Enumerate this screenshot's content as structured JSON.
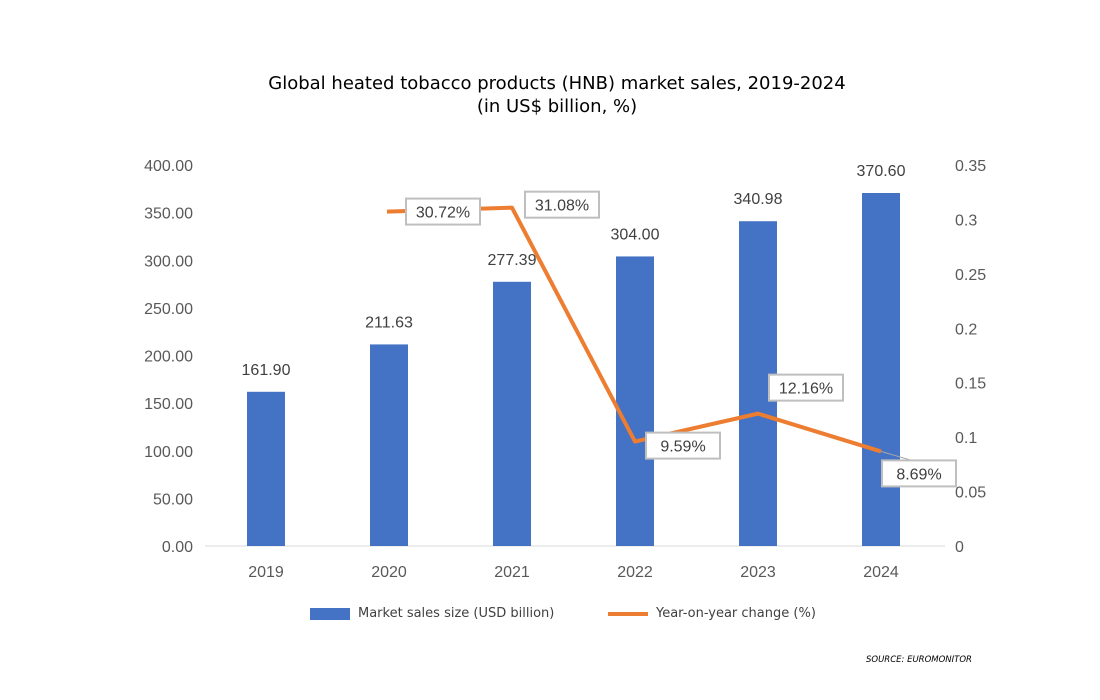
{
  "chart_data": {
    "type": "bar+line",
    "title": "Global heated tobacco products (HNB) market sales, 2019-2024",
    "subtitle": "(in US$ billion, %)",
    "categories": [
      "2019",
      "2020",
      "2021",
      "2022",
      "2023",
      "2024"
    ],
    "series": [
      {
        "name": "Market sales size (USD billion)",
        "type": "bar",
        "axis": "left",
        "color": "#4472C4",
        "values": [
          161.9,
          211.63,
          277.39,
          304.0,
          340.98,
          370.6
        ],
        "labels": [
          "161.90",
          "211.63",
          "277.39",
          "304.00",
          "340.98",
          "370.60"
        ]
      },
      {
        "name": "Year-on-year change (%)",
        "type": "line",
        "axis": "right",
        "color": "#ED7D31",
        "values": [
          null,
          0.3072,
          0.3108,
          0.0959,
          0.1216,
          0.0869
        ],
        "labels": [
          "",
          "30.72%",
          "31.08%",
          "9.59%",
          "12.16%",
          "8.69%"
        ]
      }
    ],
    "left_axis": {
      "range": [
        0,
        400
      ],
      "ticks": [
        "0.00",
        "50.00",
        "100.00",
        "150.00",
        "200.00",
        "250.00",
        "300.00",
        "350.00",
        "400.00"
      ]
    },
    "right_axis": {
      "range": [
        0,
        0.35
      ],
      "ticks": [
        "0",
        "0.05",
        "0.1",
        "0.15",
        "0.2",
        "0.25",
        "0.3",
        "0.35"
      ]
    },
    "grid": false,
    "legend_position": "bottom"
  },
  "source": "SOURCE: EUROMONITOR"
}
